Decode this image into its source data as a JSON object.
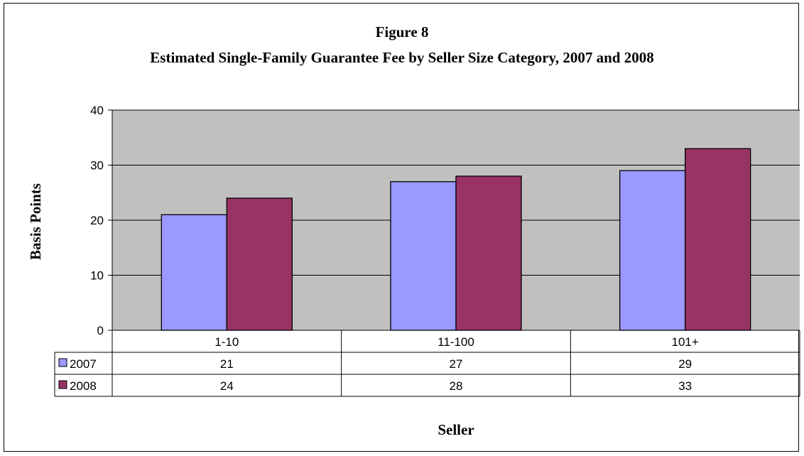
{
  "chart_data": {
    "type": "bar",
    "title": "Figure 8",
    "subtitle": "Estimated Single-Family Guarantee Fee by Seller Size Category, 2007 and 2008",
    "xlabel": "Seller",
    "ylabel": "Basis Points",
    "ylim": [
      0,
      40
    ],
    "yticks": [
      0,
      10,
      20,
      30,
      40
    ],
    "grid": true,
    "legend": "data-table",
    "categories": [
      "1-10",
      "11-100",
      "101+"
    ],
    "plot_background": "#c0c0c0",
    "series": [
      {
        "name": "2007",
        "values": [
          21,
          27,
          29
        ],
        "color": "#9999ff"
      },
      {
        "name": "2008",
        "values": [
          24,
          28,
          33
        ],
        "color": "#993366"
      }
    ]
  }
}
